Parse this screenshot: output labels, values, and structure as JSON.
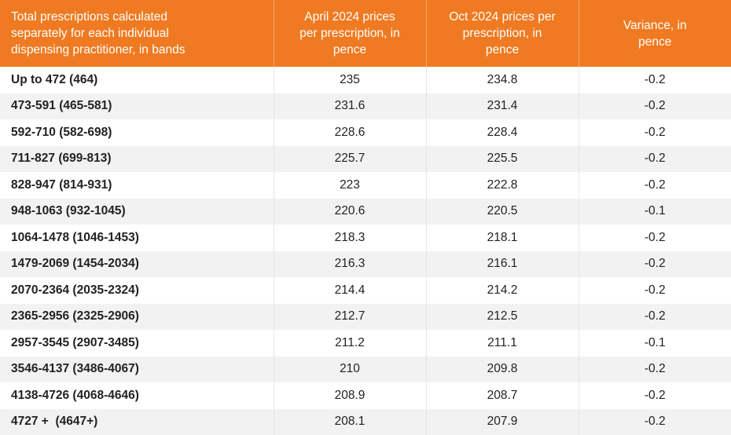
{
  "table": {
    "headers": [
      "Total prescriptions calculated separately for each individual dispensing practitioner, in bands",
      "April 2024 prices per prescription, in pence",
      "Oct 2024 prices per prescription, in pence",
      "Variance, in pence"
    ],
    "rows": [
      [
        "Up to 472 (464)",
        "235",
        "234.8",
        "-0.2"
      ],
      [
        "473-591 (465-581)",
        "231.6",
        "231.4",
        "-0.2"
      ],
      [
        "592-710 (582-698)",
        "228.6",
        "228.4",
        "-0.2"
      ],
      [
        "711-827 (699-813)",
        "225.7",
        "225.5",
        "-0.2"
      ],
      [
        "828-947 (814-931)",
        "223",
        "222.8",
        "-0.2"
      ],
      [
        "948-1063 (932-1045)",
        "220.6",
        "220.5",
        "-0.1"
      ],
      [
        "1064-1478 (1046-1453)",
        "218.3",
        "218.1",
        "-0.2"
      ],
      [
        "1479-2069 (1454-2034)",
        "216.3",
        "216.1",
        "-0.2"
      ],
      [
        "2070-2364 (2035-2324)",
        "214.4",
        "214.2",
        "-0.2"
      ],
      [
        "2365-2956 (2325-2906)",
        "212.7",
        "212.5",
        "-0.2"
      ],
      [
        "2957-3545 (2907-3485)",
        "211.2",
        "211.1",
        "-0.1"
      ],
      [
        "3546-4137 (3486-4067)",
        "210",
        "209.8",
        "-0.2"
      ],
      [
        "4138-4726 (4068-4646)",
        "208.9",
        "208.7",
        "-0.2"
      ],
      [
        "4727 +  (4647+)",
        "208.1",
        "207.9",
        "-0.2"
      ]
    ]
  },
  "colors": {
    "header_bg": "#ef7a21",
    "header_text": "#ffffff",
    "stripe": "#f2f2f2"
  }
}
